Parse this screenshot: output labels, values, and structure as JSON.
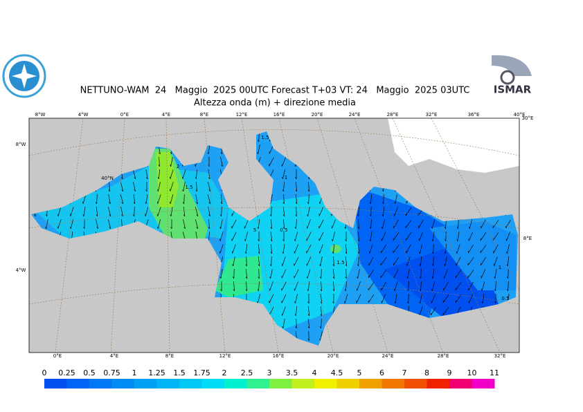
{
  "header": {
    "title": "NETTUNO-WAM  24   Maggio  2025 00UTC Forecast T+03 VT: 24   Maggio  2025 03UTC",
    "subtitle": "Altezza onda (m) + direzione media"
  },
  "logo": {
    "text": "ISMAR"
  },
  "map": {
    "top_lon_labels": [
      "8°W",
      "4°W",
      "0°E",
      "4°E",
      "8°E",
      "12°E",
      "16°E",
      "20°E",
      "24°E",
      "28°E",
      "32°E",
      "36°E",
      "40°E"
    ],
    "bottom_lon_labels": [
      "0°E",
      "4°E",
      "8°E",
      "12°E",
      "16°E",
      "20°E",
      "24°E",
      "28°E",
      "32°E"
    ],
    "side_labels": [
      "8°W",
      "4°W",
      "40°N",
      "30°E",
      "8°E"
    ],
    "contour_labels": [
      "2",
      "1.5",
      "1.5",
      "1",
      "5",
      "0.5",
      "1.5",
      "1",
      "0.5"
    ]
  },
  "legend": {
    "ticks": [
      0,
      0.25,
      0.5,
      0.75,
      1,
      1.25,
      1.5,
      1.75,
      2,
      2.5,
      3,
      3.5,
      4,
      4.5,
      5,
      6,
      7,
      8,
      9,
      10,
      11
    ],
    "colors": [
      "#0050f0",
      "#0064f5",
      "#0078f5",
      "#008cf5",
      "#00a0f5",
      "#00b4f5",
      "#00c8f5",
      "#00dcf5",
      "#00f0d0",
      "#30f090",
      "#80f040",
      "#c0f020",
      "#f0f000",
      "#f0d000",
      "#f0a000",
      "#f07800",
      "#f05000",
      "#f02000",
      "#f00070",
      "#f000c8"
    ]
  }
}
